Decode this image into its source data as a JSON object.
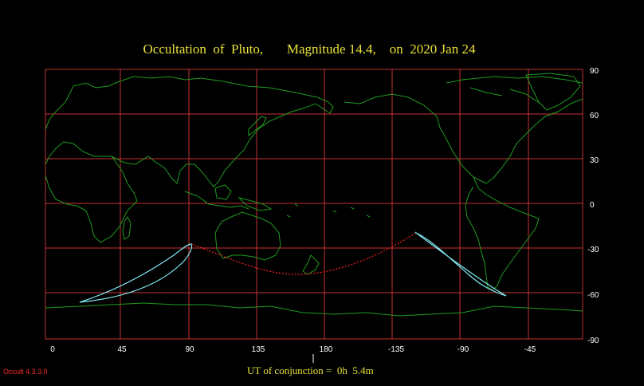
{
  "title": "Occultation  of  Pluto,       Magnitude 14.4,    on  2020 Jan 24",
  "x_tick_labels": [
    "0",
    "45",
    "90",
    "135",
    "180",
    "-135",
    "-90",
    "-45"
  ],
  "y_tick_labels": [
    "90",
    "60",
    "30",
    "0",
    "-30",
    "-60",
    "-90"
  ],
  "ut_label": "UT of conjunction =  0h  5.4m",
  "version": "Occult 4.3.3.0",
  "colors": {
    "background": "#000000",
    "grid": "#c83232",
    "coastline": "#1f9a1f",
    "path_limits": "#7fe8f0",
    "center_line": "#ff2020",
    "title": "#e8e23a"
  },
  "map": {
    "projection": "equirectangular",
    "longitude_range": [
      0,
      360
    ],
    "latitude_range": [
      -90,
      90
    ],
    "grid_spacing_deg": 30
  }
}
